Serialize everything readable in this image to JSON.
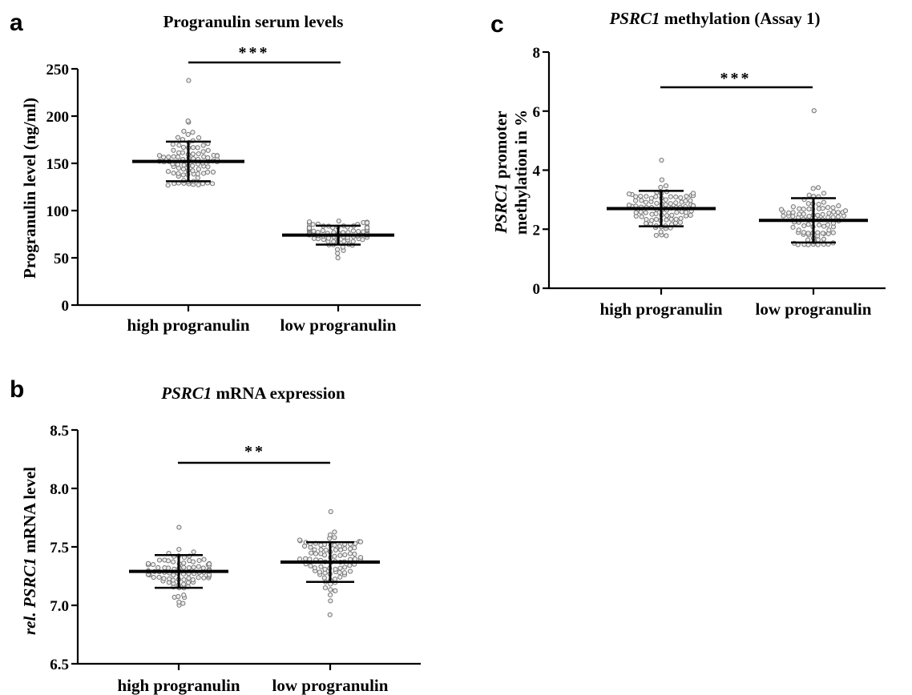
{
  "chart_data": [
    {
      "panel": "a",
      "type": "scatter",
      "title": "Progranulin serum levels",
      "ylabel": "Progranulin level (ng/ml)",
      "ylim": [
        0,
        250
      ],
      "yticks": [
        0,
        50,
        100,
        150,
        200,
        250
      ],
      "ytick_labels": [
        "0",
        "50",
        "100",
        "150",
        "200",
        "250"
      ],
      "categories": [
        "high progranulin",
        "low progranulin"
      ],
      "groups": [
        {
          "category": "high progranulin",
          "mean": 152,
          "sd_low": 131,
          "sd_high": 173,
          "n": 90,
          "min": 128,
          "max": 237
        },
        {
          "category": "low progranulin",
          "mean": 74,
          "sd_low": 64,
          "sd_high": 84,
          "n": 90,
          "min": 50,
          "max": 89
        }
      ],
      "significance": {
        "label": "***",
        "between": [
          0,
          1
        ]
      }
    },
    {
      "panel": "b",
      "type": "scatter",
      "title_italic": "PSRC1",
      "title_rest": " mRNA expression",
      "ylabel_parts": [
        "rel. ",
        "PSRC1",
        " mRNA level"
      ],
      "ylim": [
        6.5,
        8.5
      ],
      "yticks": [
        6.5,
        7.0,
        7.5,
        8.0,
        8.5
      ],
      "ytick_labels": [
        "6.5",
        "7.0",
        "7.5",
        "8.0",
        "8.5"
      ],
      "categories": [
        "high progranulin",
        "low progranulin"
      ],
      "groups": [
        {
          "category": "high progranulin",
          "mean": 7.29,
          "sd_low": 7.15,
          "sd_high": 7.43,
          "n": 90,
          "min": 7.01,
          "max": 7.67
        },
        {
          "category": "low progranulin",
          "mean": 7.37,
          "sd_low": 7.2,
          "sd_high": 7.54,
          "n": 90,
          "min": 6.91,
          "max": 7.81
        }
      ],
      "significance": {
        "label": "**",
        "between": [
          0,
          1
        ]
      }
    },
    {
      "panel": "c",
      "type": "scatter",
      "title_italic": "PSRC1",
      "title_rest": " methylation (Assay 1)",
      "ylabel_line1_italic": "PSRC1",
      "ylabel_line1_rest": " promoter",
      "ylabel_line2": "methylation in %",
      "ylim": [
        0,
        8
      ],
      "yticks": [
        0,
        2,
        4,
        6,
        8
      ],
      "ytick_labels": [
        "0",
        "2",
        "4",
        "6",
        "8"
      ],
      "categories": [
        "high progranulin",
        "low progranulin"
      ],
      "groups": [
        {
          "category": "high progranulin",
          "mean": 2.7,
          "sd_low": 2.1,
          "sd_high": 3.3,
          "n": 90,
          "min": 1.8,
          "max": 4.3
        },
        {
          "category": "low progranulin",
          "mean": 2.3,
          "sd_low": 1.55,
          "sd_high": 3.05,
          "n": 90,
          "min": 1.5,
          "max": 6.0
        }
      ],
      "significance": {
        "label": "***",
        "between": [
          0,
          1
        ]
      }
    }
  ],
  "panel_letters": [
    "a",
    "b",
    "c"
  ]
}
